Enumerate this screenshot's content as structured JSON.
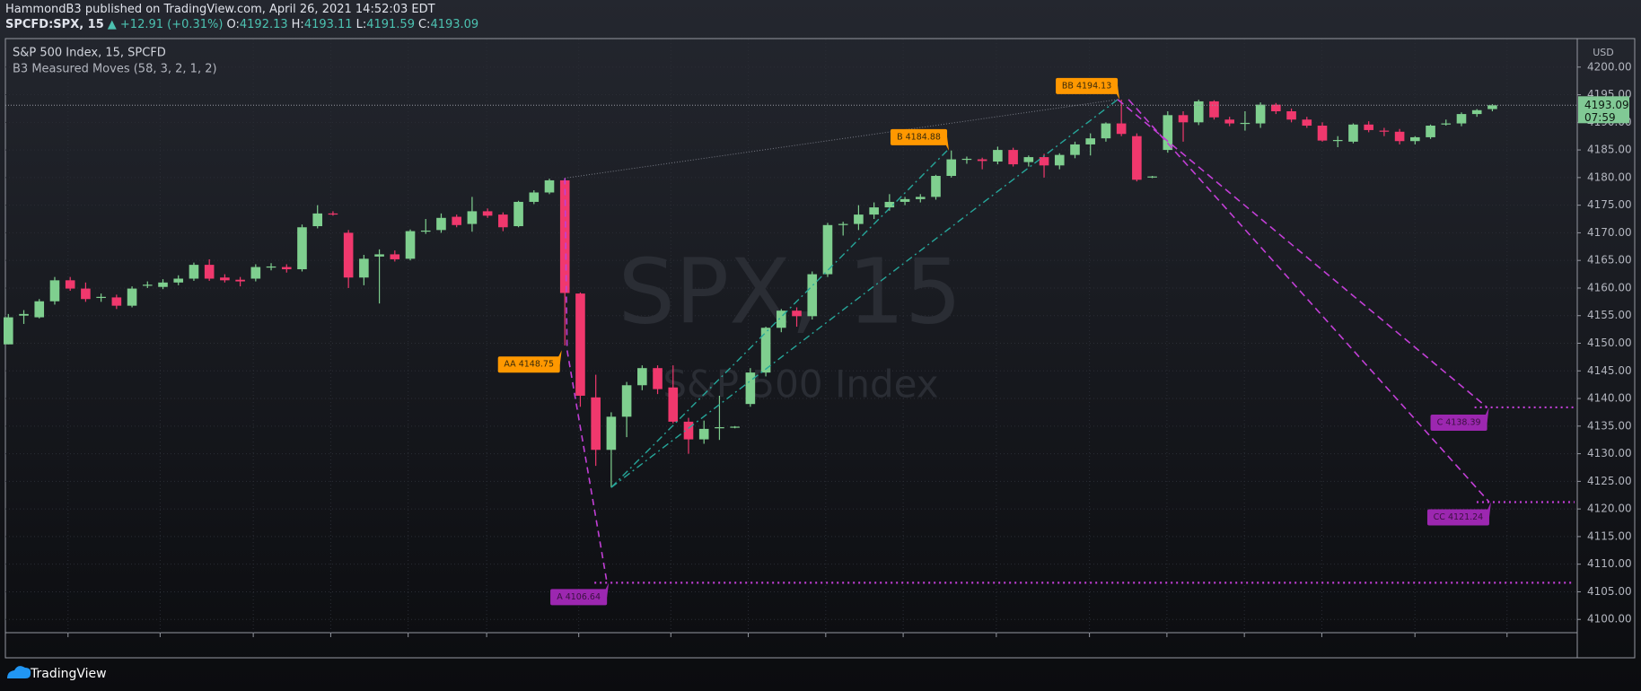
{
  "header": {
    "publisher": "HammondB3 published on TradingView.com, April 26, 2021 14:52:03 EDT",
    "symbol": "SPCFD:SPX, 15",
    "change": "▲ +12.91 (+0.31%)",
    "ohlc": [
      {
        "key": "O:",
        "value": "4192.13"
      },
      {
        "key": "H:",
        "value": "4193.11"
      },
      {
        "key": "L:",
        "value": "4191.59"
      },
      {
        "key": "C:",
        "value": "4193.09"
      }
    ]
  },
  "chart_data": {
    "type": "candlestick",
    "title": "S&P 500 Index, 15, SPCFD",
    "indicator": "B3 Measured Moves (58, 3, 2, 1, 2)",
    "watermark": "SPX, 15",
    "watermark_subtitle": "S&P 500 Index",
    "currency": "USD",
    "countdown": "07:59",
    "up_color": "#7fcf8f",
    "down_color": "#f0386d",
    "open": [
      4149.8,
      4155.0,
      4154.7,
      4157.6,
      4161.4,
      4159.9,
      4158.2,
      4158.3,
      4156.8,
      4160.5,
      4160.2,
      4161.0,
      4161.7,
      4164.2,
      4161.9,
      4161.5,
      4161.7,
      4163.7,
      4163.8,
      4163.4,
      4171.2,
      4173.5,
      4170.0,
      4161.9,
      4165.7,
      4166.1,
      4165.3,
      4170.3,
      4170.5,
      4172.9,
      4171.6,
      4173.9,
      4173.3,
      4171.2,
      4175.6,
      4177.3,
      4179.5,
      4159.0,
      4140.2,
      4130.7,
      4136.7,
      4142.4,
      4145.5,
      4142.0,
      4135.8,
      4132.6,
      4134.6,
      4134.8,
      4139.0,
      4144.7,
      4152.8,
      4155.9,
      4154.9,
      4162.5,
      4171.4,
      4171.6,
      4173.3,
      4174.6,
      4175.6,
      4176.1,
      4176.5,
      4180.3,
      4183.3,
      4183.3,
      4182.9,
      4185.0,
      4182.8,
      4183.7,
      4182.2,
      4184.1,
      4186.0,
      4187.1,
      4189.8,
      4187.5,
      4180.1,
      4185.0,
      4191.3,
      4190.0,
      4193.8,
      4190.5,
      4189.8,
      4189.8,
      4193.2,
      4192.0,
      4190.5,
      4189.4,
      4186.7,
      4186.5,
      4189.6,
      4188.5,
      4188.3,
      4186.6,
      4187.3,
      4189.7,
      4189.8,
      4191.5,
      4192.4
    ],
    "high": [
      4155.3,
      4156.0,
      4158.0,
      4162.0,
      4162.0,
      4161.0,
      4159.0,
      4158.8,
      4160.3,
      4161.2,
      4161.6,
      4162.3,
      4164.6,
      4165.2,
      4162.5,
      4162.0,
      4164.3,
      4164.5,
      4164.3,
      4171.5,
      4175.0,
      4173.9,
      4170.5,
      4166.0,
      4167.0,
      4166.8,
      4170.6,
      4172.5,
      4173.5,
      4173.3,
      4176.5,
      4174.4,
      4173.7,
      4175.8,
      4177.7,
      4179.8,
      4179.9,
      4159.2,
      4144.3,
      4137.5,
      4143.0,
      4146.0,
      4146.0,
      4146.0,
      4136.5,
      4136.0,
      4140.5,
      4135.0,
      4145.5,
      4153.0,
      4156.2,
      4156.5,
      4163.0,
      4171.8,
      4172.0,
      4175.0,
      4175.5,
      4177.0,
      4176.5,
      4177.0,
      4180.5,
      4184.9,
      4183.8,
      4183.6,
      4185.6,
      4185.4,
      4184.0,
      4184.3,
      4184.4,
      4186.5,
      4188.0,
      4190.0,
      4194.1,
      4188.0,
      4180.3,
      4192.0,
      4192.0,
      4194.1,
      4194.0,
      4191.0,
      4192.0,
      4193.6,
      4193.5,
      4192.5,
      4191.0,
      4190.0,
      4187.5,
      4189.8,
      4190.2,
      4189.0,
      4188.8,
      4187.5,
      4189.6,
      4190.5,
      4191.8,
      4192.4,
      4193.3
    ],
    "low": [
      4149.8,
      4153.5,
      4154.5,
      4157.0,
      4159.5,
      4157.5,
      4157.5,
      4156.2,
      4156.5,
      4160.0,
      4159.8,
      4160.5,
      4161.3,
      4161.3,
      4161.0,
      4160.3,
      4161.2,
      4163.2,
      4162.8,
      4163.0,
      4170.8,
      4173.1,
      4160.0,
      4160.5,
      4157.2,
      4164.8,
      4165.0,
      4169.8,
      4170.0,
      4171.0,
      4170.2,
      4172.7,
      4170.3,
      4171.0,
      4175.2,
      4177.0,
      4149.6,
      4138.5,
      4127.8,
      4123.9,
      4133.0,
      4141.5,
      4140.8,
      4135.5,
      4130.0,
      4131.8,
      4132.5,
      4134.6,
      4138.5,
      4144.0,
      4152.0,
      4153.0,
      4154.3,
      4162.0,
      4169.5,
      4170.5,
      4172.5,
      4174.0,
      4175.0,
      4175.5,
      4176.0,
      4180.0,
      4182.5,
      4181.5,
      4182.4,
      4182.0,
      4182.0,
      4180.0,
      4181.5,
      4183.5,
      4184.0,
      4186.5,
      4187.5,
      4179.3,
      4179.9,
      4184.5,
      4186.5,
      4189.5,
      4190.5,
      4189.3,
      4188.5,
      4189.0,
      4191.5,
      4190.0,
      4189.0,
      4186.5,
      4185.5,
      4186.2,
      4188.2,
      4187.5,
      4186.0,
      4186.0,
      4187.0,
      4189.4,
      4189.3,
      4191.0,
      4192.0
    ],
    "close": [
      4154.7,
      4155.3,
      4157.6,
      4161.4,
      4159.9,
      4158.0,
      4158.4,
      4156.8,
      4159.9,
      4160.6,
      4161.0,
      4161.7,
      4164.2,
      4161.7,
      4161.4,
      4161.2,
      4163.8,
      4163.9,
      4163.4,
      4171.0,
      4173.5,
      4173.3,
      4161.9,
      4165.3,
      4166.1,
      4165.2,
      4170.3,
      4170.4,
      4172.7,
      4171.4,
      4173.9,
      4173.1,
      4171.0,
      4175.6,
      4177.3,
      4179.5,
      4159.1,
      4140.5,
      4130.7,
      4136.7,
      4142.4,
      4145.5,
      4141.7,
      4135.8,
      4132.6,
      4134.5,
      4134.8,
      4134.9,
      4144.7,
      4152.8,
      4155.9,
      4154.9,
      4162.5,
      4171.4,
      4171.6,
      4173.3,
      4174.6,
      4175.6,
      4176.1,
      4176.5,
      4180.3,
      4183.3,
      4183.4,
      4183.0,
      4185.0,
      4182.4,
      4183.7,
      4182.2,
      4184.1,
      4186.0,
      4187.1,
      4189.8,
      4187.9,
      4179.6,
      4180.2,
      4191.3,
      4190.0,
      4193.8,
      4190.9,
      4189.8,
      4189.9,
      4193.2,
      4192.0,
      4190.5,
      4189.4,
      4186.7,
      4186.8,
      4189.6,
      4188.6,
      4188.4,
      4186.6,
      4187.3,
      4189.4,
      4189.8,
      4191.5,
      4192.2,
      4193.09
    ],
    "ylim": [
      4097.6,
      4205
    ],
    "yticks": [
      {
        "value": 4100,
        "label": "4100.00"
      },
      {
        "value": 4105,
        "label": "4105.00"
      },
      {
        "value": 4110,
        "label": "4110.00"
      },
      {
        "value": 4115,
        "label": "4115.00"
      },
      {
        "value": 4120,
        "label": "4120.00"
      },
      {
        "value": 4125,
        "label": "4125.00"
      },
      {
        "value": 4130,
        "label": "4130.00"
      },
      {
        "value": 4135,
        "label": "4135.00"
      },
      {
        "value": 4140,
        "label": "4140.00"
      },
      {
        "value": 4145,
        "label": "4145.00"
      },
      {
        "value": 4150,
        "label": "4150.00"
      },
      {
        "value": 4155,
        "label": "4155.00"
      },
      {
        "value": 4160,
        "label": "4160.00"
      },
      {
        "value": 4165,
        "label": "4165.00"
      },
      {
        "value": 4170,
        "label": "4170.00"
      },
      {
        "value": 4175,
        "label": "4175.00"
      },
      {
        "value": 4180,
        "label": "4180.00"
      },
      {
        "value": 4185,
        "label": "4185.00"
      },
      {
        "value": 4190,
        "label": "4190.00"
      },
      {
        "value": 4195,
        "label": "4195.00"
      },
      {
        "value": 4200,
        "label": "4200.00"
      }
    ],
    "grid": true,
    "annotations": [
      {
        "label": "AA 4148.75",
        "value": 4148.75,
        "color": "#ff9800"
      },
      {
        "label": "B 4184.88",
        "value": 4184.88,
        "color": "#ff9800"
      },
      {
        "label": "BB 4194.13",
        "value": 4194.13,
        "color": "#ff9800"
      },
      {
        "label": "A 4106.64",
        "value": 4106.64,
        "color": "#9c27b0"
      },
      {
        "label": "C 4138.39",
        "value": 4138.39,
        "color": "#9c27b0"
      },
      {
        "label": "CC 4121.24",
        "value": 4121.24,
        "color": "#9c27b0"
      }
    ]
  },
  "footer": {
    "brand": "TradingView"
  }
}
